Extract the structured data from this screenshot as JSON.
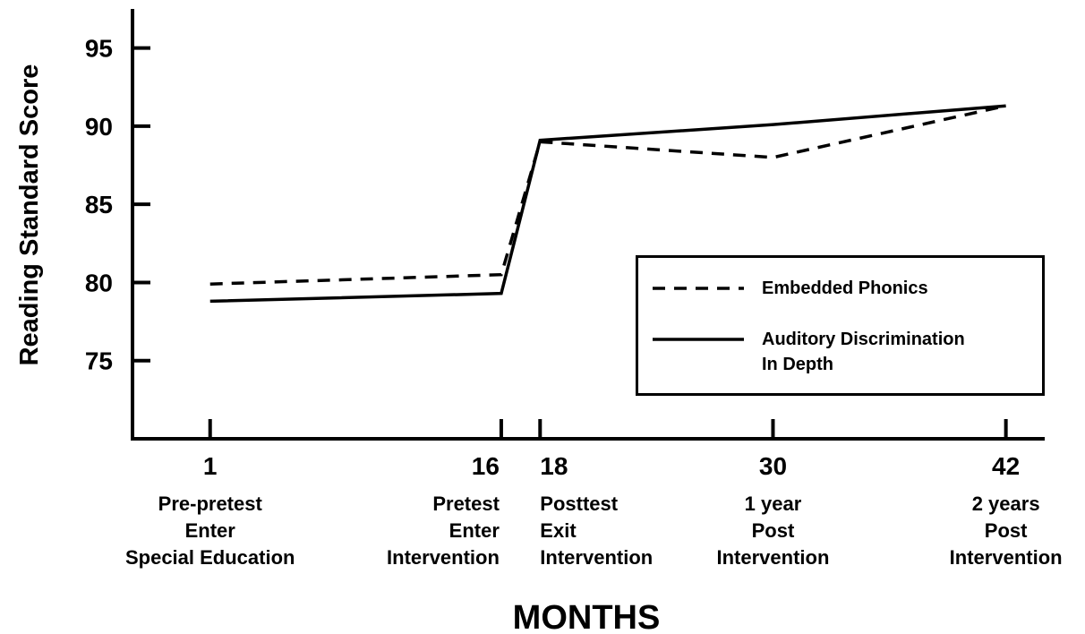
{
  "chart_data": {
    "type": "line",
    "y_label": "Reading Standard Score",
    "x_label": "MONTHS",
    "x": [
      1,
      16,
      18,
      30,
      42
    ],
    "x_descriptions": [
      [
        "Pre-pretest",
        "Enter",
        "Special Education"
      ],
      [
        "Pretest",
        "Enter",
        "Intervention"
      ],
      [
        "Posttest",
        "Exit",
        "Intervention"
      ],
      [
        "1 year",
        "Post",
        "Intervention"
      ],
      [
        "2 years",
        "Post",
        "Intervention"
      ]
    ],
    "series": [
      {
        "name": "Embedded Phonics",
        "color": "#000000",
        "dash": true,
        "values": [
          79.9,
          80.5,
          89.0,
          88.0,
          91.3
        ]
      },
      {
        "name": "Auditory Discrimination In Depth",
        "color": "#000000",
        "dash": false,
        "values": [
          78.8,
          79.3,
          89.1,
          90.1,
          91.3
        ]
      }
    ],
    "xlim": [
      -3,
      44
    ],
    "xticks": [
      1,
      16,
      18,
      30,
      42
    ],
    "ylim": [
      70,
      97.5
    ],
    "yticks": [
      75,
      80,
      85,
      90,
      95
    ],
    "grid": false
  }
}
